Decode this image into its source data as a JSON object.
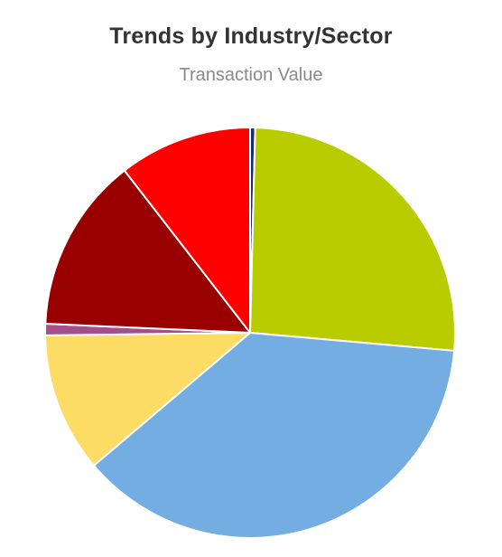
{
  "chart_data": {
    "type": "pie",
    "title": "Trends by Industry/Sector",
    "subtitle": "Transaction Value",
    "slices": [
      {
        "value": 0.4,
        "color": "#1f2a6b"
      },
      {
        "value": 26.0,
        "color": "#b8cc00"
      },
      {
        "value": 37.4,
        "color": "#73ade1"
      },
      {
        "value": 11.0,
        "color": "#fcdc64"
      },
      {
        "value": 0.9,
        "color": "#a64d8c"
      },
      {
        "value": 13.8,
        "color": "#990000"
      },
      {
        "value": 10.5,
        "color": "#ff0000"
      }
    ],
    "start_angle_deg": 0,
    "direction": "clockwise",
    "legend": "none"
  }
}
